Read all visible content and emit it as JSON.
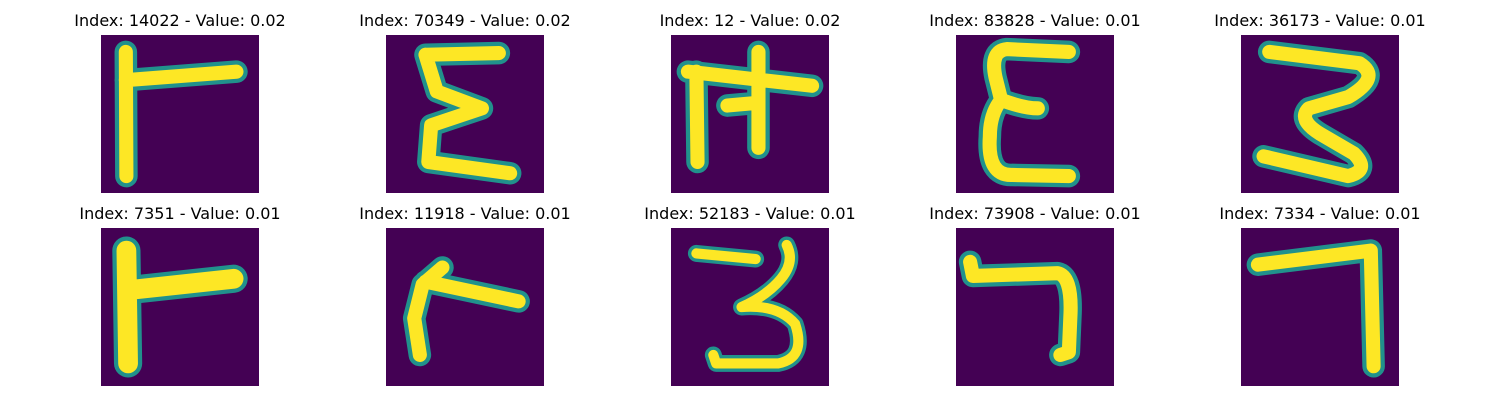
{
  "figure": {
    "colors": {
      "background": "#440154",
      "halo": "#21918c",
      "stroke": "#fde725"
    },
    "panels": [
      {
        "title": "Index: 14022 - Value: 0.02",
        "glyph": "glyph-r-shape"
      },
      {
        "title": "Index: 70349 - Value: 0.02",
        "glyph": "glyph-sigma-shape"
      },
      {
        "title": "Index: 12 - Value: 0.02",
        "glyph": "glyph-pi-shape"
      },
      {
        "title": "Index: 83828 - Value: 0.01",
        "glyph": "glyph-epsilon-shape"
      },
      {
        "title": "Index: 36173 - Value: 0.01",
        "glyph": "glyph-three-shape"
      },
      {
        "title": "Index: 7351 - Value: 0.01",
        "glyph": "glyph-r-shape"
      },
      {
        "title": "Index: 11918 - Value: 0.01",
        "glyph": "glyph-r-shape"
      },
      {
        "title": "Index: 52183 - Value: 0.01",
        "glyph": "glyph-three-shape"
      },
      {
        "title": "Index: 73908 - Value: 0.01",
        "glyph": "glyph-seven-shape"
      },
      {
        "title": "Index: 7334 - Value: 0.01",
        "glyph": "glyph-seven-shape"
      }
    ]
  }
}
